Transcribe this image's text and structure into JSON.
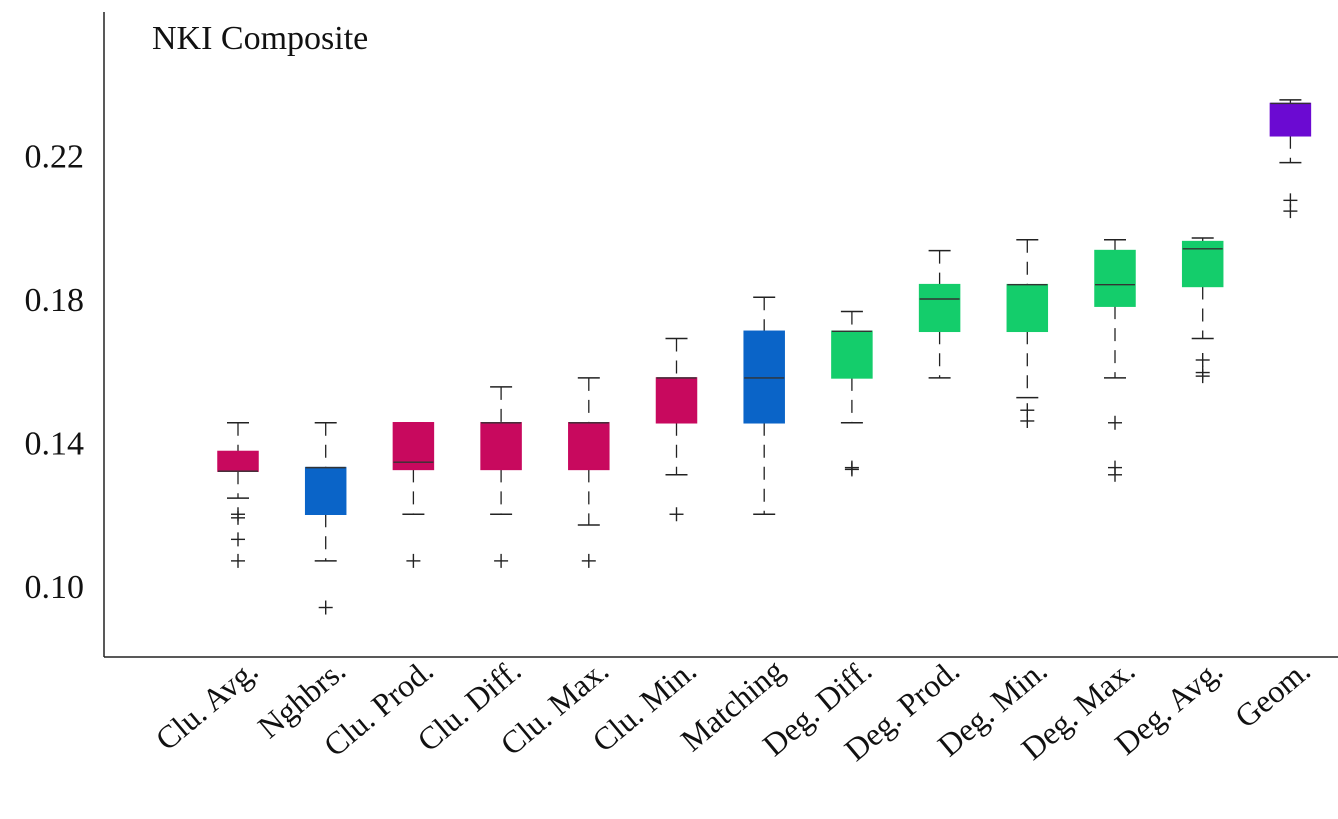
{
  "chart_data": {
    "type": "box",
    "title": "NKI Composite",
    "xlabel": "",
    "ylabel": "",
    "ylim": [
      0.082,
      0.26
    ],
    "yticks": [
      0.1,
      0.14,
      0.18,
      0.22
    ],
    "ytick_labels": [
      "0.10",
      "0.14",
      "0.18",
      "0.22"
    ],
    "grid": false,
    "legend": "none",
    "categories": [
      "Clu. Avg.",
      "Nghbrs.",
      "Clu. Prod.",
      "Clu. Diff.",
      "Clu. Max.",
      "Clu. Min.",
      "Matching",
      "Deg. Diff.",
      "Deg. Prod.",
      "Deg. Min.",
      "Deg. Max.",
      "Deg. Avg.",
      "Geom."
    ],
    "colors": {
      "clustering": "#c8095e",
      "neighbors": "#0a64c8",
      "degree": "#14cd6b",
      "geometric": "#6b0ad2",
      "whisker": "#222222"
    },
    "boxes": [
      {
        "category": "Clu. Avg.",
        "group": "clustering",
        "q1": 0.132,
        "median": 0.132,
        "q3": 0.1375,
        "whisker_low": 0.1245,
        "whisker_high": 0.1455,
        "outliers": [
          0.12,
          0.119,
          0.113,
          0.107
        ]
      },
      {
        "category": "Nghbrs.",
        "group": "neighbors",
        "q1": 0.12,
        "median": 0.133,
        "q3": 0.133,
        "whisker_low": 0.107,
        "whisker_high": 0.1455,
        "outliers": [
          0.094
        ]
      },
      {
        "category": "Clu. Prod.",
        "group": "clustering",
        "q1": 0.1325,
        "median": 0.1345,
        "q3": 0.1455,
        "whisker_low": 0.12,
        "whisker_high": 0.1455,
        "outliers": [
          0.107
        ]
      },
      {
        "category": "Clu. Diff.",
        "group": "clustering",
        "q1": 0.1325,
        "median": 0.1455,
        "q3": 0.1455,
        "whisker_low": 0.12,
        "whisker_high": 0.1555,
        "outliers": [
          0.107
        ]
      },
      {
        "category": "Clu. Max.",
        "group": "clustering",
        "q1": 0.1325,
        "median": 0.1455,
        "q3": 0.1455,
        "whisker_low": 0.117,
        "whisker_high": 0.158,
        "outliers": [
          0.107
        ]
      },
      {
        "category": "Clu. Min.",
        "group": "clustering",
        "q1": 0.1455,
        "median": 0.158,
        "q3": 0.158,
        "whisker_low": 0.131,
        "whisker_high": 0.169,
        "outliers": [
          0.12
        ]
      },
      {
        "category": "Matching",
        "group": "neighbors",
        "q1": 0.1455,
        "median": 0.158,
        "q3": 0.171,
        "whisker_low": 0.12,
        "whisker_high": 0.1805,
        "outliers": []
      },
      {
        "category": "Deg. Diff.",
        "group": "degree",
        "q1": 0.158,
        "median": 0.171,
        "q3": 0.171,
        "whisker_low": 0.1455,
        "whisker_high": 0.1765,
        "outliers": [
          0.1325,
          0.133
        ]
      },
      {
        "category": "Deg. Prod.",
        "group": "degree",
        "q1": 0.171,
        "median": 0.18,
        "q3": 0.184,
        "whisker_low": 0.158,
        "whisker_high": 0.1935,
        "outliers": []
      },
      {
        "category": "Deg. Min.",
        "group": "degree",
        "q1": 0.171,
        "median": 0.184,
        "q3": 0.184,
        "whisker_low": 0.1525,
        "whisker_high": 0.1965,
        "outliers": [
          0.149,
          0.146
        ]
      },
      {
        "category": "Deg. Max.",
        "group": "degree",
        "q1": 0.178,
        "median": 0.184,
        "q3": 0.1935,
        "whisker_low": 0.158,
        "whisker_high": 0.1965,
        "outliers": [
          0.1455,
          0.133,
          0.131
        ]
      },
      {
        "category": "Deg. Avg.",
        "group": "degree",
        "q1": 0.1835,
        "median": 0.194,
        "q3": 0.196,
        "whisker_low": 0.169,
        "whisker_high": 0.197,
        "outliers": [
          0.163,
          0.1595,
          0.1585
        ]
      },
      {
        "category": "Geom.",
        "group": "geometric",
        "q1": 0.2255,
        "median": 0.2345,
        "q3": 0.2345,
        "whisker_low": 0.218,
        "whisker_high": 0.2355,
        "outliers": [
          0.2075,
          0.2045
        ]
      }
    ]
  }
}
